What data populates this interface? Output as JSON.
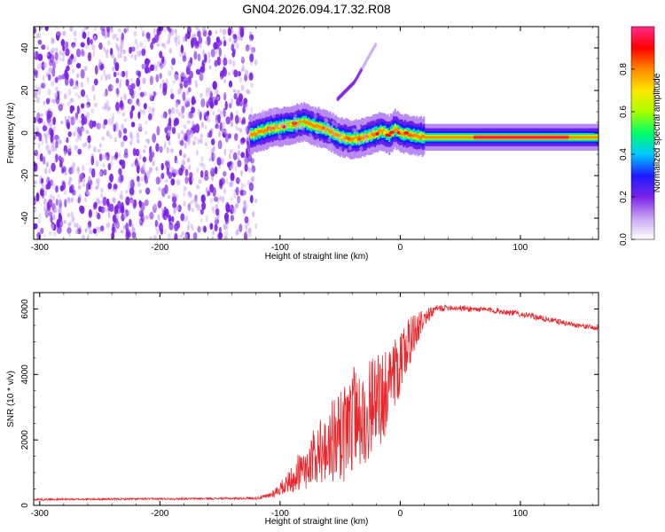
{
  "title": "GN04.2026.094.17.32.R08",
  "colors": {
    "signal_line": "#e8262b",
    "noise_purple": "#7a22e6",
    "noise_light": "#c9a4f5",
    "ridge_core": "#e8262b"
  },
  "chart_data": [
    {
      "type": "heatmap",
      "name": "spectrogram",
      "title": "GN04.2026.094.17.32.R08",
      "xlabel": "Height of straight line (km)",
      "ylabel": "Frequency (Hz)",
      "xlim": [
        -305,
        165
      ],
      "ylim": [
        -50,
        50
      ],
      "xticks": [
        -300,
        -200,
        -100,
        0,
        100
      ],
      "xtick_labels": [
        "-300",
        "-200",
        "-100",
        "0",
        "100"
      ],
      "yticks": [
        -40,
        -20,
        0,
        20,
        40
      ],
      "ytick_labels": [
        "-40",
        "-20",
        "0",
        "20",
        "40"
      ],
      "colorbar": {
        "label": "Normalized spectral amplitude",
        "range": [
          0,
          1
        ],
        "ticks": [
          0,
          0.2,
          0.4,
          0.6,
          0.8
        ],
        "tick_labels": [
          "0.0",
          "0.2",
          "0.4",
          "0.6",
          "0.8"
        ],
        "stops": [
          "#ffffff",
          "#c9a4f5",
          "#7a22e6",
          "#1c1cff",
          "#00c8ff",
          "#00ff66",
          "#aaff00",
          "#ffe600",
          "#ff8800",
          "#ff0000",
          "#ff2a8a"
        ]
      },
      "noise_region_x": [
        -305,
        -120
      ],
      "ridge": {
        "x": [
          -125,
          -110,
          -100,
          -90,
          -80,
          -70,
          -60,
          -50,
          -40,
          -30,
          -20,
          -15,
          -10,
          -5,
          0,
          10,
          20,
          40,
          60,
          80,
          100,
          120,
          140,
          165
        ],
        "freq": [
          -1,
          2,
          3,
          4,
          5,
          3,
          1,
          -2,
          -3,
          -2,
          0,
          1,
          -1,
          2,
          0,
          -1,
          -2,
          -2,
          -2,
          -2,
          -2,
          -2,
          -2,
          -2
        ]
      },
      "diagonal_trace": {
        "x": [
          -52,
          -45,
          -38,
          -32,
          -26,
          -20
        ],
        "freq": [
          16,
          20,
          24,
          30,
          36,
          42
        ]
      }
    },
    {
      "type": "line",
      "name": "snr",
      "xlabel": "Height of straight line (km)",
      "ylabel": "SNR (10 * v/v)",
      "xlim": [
        -305,
        165
      ],
      "ylim": [
        0,
        6500
      ],
      "xticks": [
        -300,
        -200,
        -100,
        0,
        100
      ],
      "xtick_labels": [
        "-300",
        "-200",
        "-100",
        "0",
        "100"
      ],
      "yticks": [
        0,
        2000,
        4000,
        6000
      ],
      "ytick_labels": [
        "0",
        "2000",
        "4000",
        "6000"
      ],
      "series": [
        {
          "name": "SNR",
          "x": [
            -305,
            -250,
            -200,
            -150,
            -120,
            -110,
            -100,
            -90,
            -80,
            -70,
            -60,
            -50,
            -40,
            -30,
            -20,
            -10,
            0,
            10,
            20,
            30,
            40,
            60,
            80,
            100,
            120,
            140,
            165
          ],
          "y": [
            180,
            190,
            200,
            210,
            220,
            280,
            500,
            800,
            1100,
            1400,
            1700,
            2000,
            2400,
            2700,
            3000,
            3500,
            4300,
            5100,
            5700,
            6000,
            6050,
            6000,
            5950,
            5850,
            5700,
            5550,
            5400
          ],
          "spread": [
            30,
            30,
            30,
            30,
            40,
            80,
            200,
            400,
            650,
            900,
            1150,
            1350,
            1500,
            1500,
            1400,
            1200,
            900,
            600,
            250,
            120,
            90,
            90,
            90,
            90,
            90,
            80,
            80
          ]
        }
      ]
    }
  ]
}
